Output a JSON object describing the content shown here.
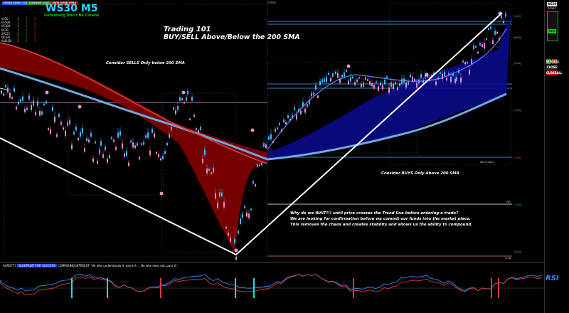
{
  "sessions": [
    {
      "label": "HONG KONG 2142",
      "color": "#1a5aff"
    },
    {
      "label": "LONDON 1442",
      "color": "#2a8a2a"
    },
    {
      "label": "NEW YORK 0942",
      "color": "#c01a1a"
    }
  ],
  "logo": {
    "title": "WS30 M5",
    "subtitle": "Gutenberg Don't Be Clowns"
  },
  "stats": {
    "rows": [
      {
        "pair": "US30",
        "a": "1",
        "b": "2",
        "c": "3"
      },
      {
        "pair": "US500",
        "a": "1",
        "b": "2",
        "c": "3"
      },
      {
        "pair": "US100",
        "a": "1",
        "b": "2",
        "c": "3"
      },
      {
        "pair": "DE30",
        "a": "1",
        "b": "2",
        "c": "3"
      },
      {
        "pair": "JP225",
        "a": "1",
        "b": "2",
        "c": "3"
      },
      {
        "pair": "UK100",
        "a": "1",
        "b": "2",
        "c": "3"
      },
      {
        "pair": "XAUUSD",
        "a": "1",
        "b": "2",
        "c": "3"
      }
    ]
  },
  "header_day": "Friday",
  "title": {
    "line1": "Trading 101",
    "line2": "BUY/SELL Above/Below the 200 SMA"
  },
  "notes": {
    "sells": "Consider SELLS Only below 200 SMA",
    "buys": "Consider BUYS Only Above 200 SMA",
    "why": [
      "Why do we WAIT!!! until price crosses the Trend line before entering a trade?",
      "We are looking for confirmation before we commit our funds into the market place.",
      "This removes the chaos and creates stability and allows us the ability to compound."
    ]
  },
  "levels": [
    {
      "label": "[8/8]",
      "color": "#33dd33"
    },
    {
      "label": "[6/8]",
      "color": "#bbbbbb"
    },
    {
      "label": "[4/8]",
      "color": "#bbbbbb"
    },
    {
      "label": "[3/8]",
      "color": "#33dd33"
    },
    {
      "label": "[2/8]",
      "color": "#ff5577"
    },
    {
      "label": "[1/8]",
      "color": "#33dd33"
    },
    {
      "label": "[0/8]",
      "color": "#33dd33"
    }
  ],
  "level_tags": {
    "open_today": "OpenToday",
    "pdl": "PDL",
    "ylow": "yLOW"
  },
  "right_panel": {
    "symbol": "WS30",
    "price": "33167",
    "percent": "93%",
    "buttons": [
      "BUY",
      "SELL",
      "CLOSE",
      "CLOSEALL"
    ]
  },
  "ticker": {
    "prefix": "XARD777",
    "highlight": "BLUEPRINT FOR SUCCESS",
    "text": "COMPOUND INTEREST: 'He who understands it, earns it ... He who does not, pays it.'"
  },
  "rsi": {
    "label": "RSI"
  },
  "colors": {
    "bear_fill": "#8b0000",
    "bull_fill": "#0a0a8a",
    "sma": "#6fa8dc",
    "candle_up": "#3fb6ff",
    "candle_down": "#e88ad0",
    "trend": "#ffffff"
  }
}
